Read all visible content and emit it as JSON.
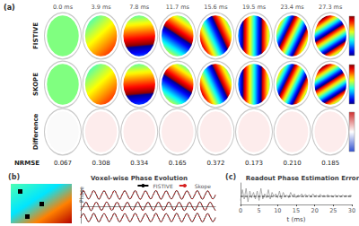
{
  "panel_a": {
    "panel_label": "(a)",
    "times": [
      "0.0 ms",
      "3.9 ms",
      "7.8 ms",
      "11.7 ms",
      "15.6 ms",
      "19.5 ms",
      "23.4 ms",
      "27.3 ms"
    ],
    "rows": [
      "FISTIVE",
      "SKOPE",
      "Difference"
    ],
    "metric": "NRMSE",
    "nrmse": [
      "0.067",
      "0.308",
      "0.334",
      "0.165",
      "0.372",
      "0.173",
      "0.210",
      "0.185"
    ]
  },
  "chart_data": [
    {
      "type": "line",
      "panel_label": "(b)",
      "title": "Voxel-wise Phase Evolution",
      "y_label": "Phase",
      "tick_labels": false,
      "legend": "top-right",
      "ylim": [
        -3,
        3
      ],
      "series": [
        {
          "name": "FISTIVE",
          "color": "#000000",
          "line_style": "solid",
          "values": [
            2.0,
            2.7,
            2.0,
            1.3,
            2.0,
            2.75,
            2.05,
            1.25,
            2.0,
            2.7,
            1.95,
            1.3,
            2.0,
            2.75,
            2.0,
            1.25,
            2.05,
            2.7,
            2.0,
            1.3,
            2.0,
            2.75,
            1.95,
            1.25,
            2.0,
            2.7,
            2.0,
            1.3,
            2.05,
            2.75,
            2.0,
            1.25,
            2.0,
            2.7,
            1.95,
            1.3,
            2.0,
            2.75,
            2.0,
            1.25,
            2.0,
            2.7,
            2.05,
            1.3,
            2.0,
            2.75,
            2.0,
            1.25,
            2.0,
            2.7,
            2.0,
            1.3,
            2.0
          ]
        },
        {
          "name": "Skope",
          "color": "#d62020",
          "line_style": "dashed",
          "values": [
            2.0,
            2.72,
            2.02,
            1.3,
            2.0,
            2.74,
            2.05,
            1.27,
            2.02,
            2.7,
            1.95,
            1.28,
            2.0,
            2.74,
            2.0,
            1.27,
            2.05,
            2.72,
            2.0,
            1.3,
            2.0,
            2.73,
            1.97,
            1.25,
            2.0,
            2.7,
            2.02,
            1.3,
            2.05,
            2.74,
            2.0,
            1.27,
            2.0,
            2.7,
            1.95,
            1.3,
            2.02,
            2.75,
            2.0,
            1.25,
            2.0,
            2.72,
            2.05,
            1.3,
            2.0,
            2.74,
            2.0,
            1.27,
            2.0,
            2.7,
            2.02,
            1.3,
            2.0
          ]
        },
        {
          "name": "FISTIVE",
          "color": "#000000",
          "line_style": "solid",
          "values": [
            -0.7,
            0,
            0.7,
            0,
            -0.75,
            0.05,
            0.7,
            0,
            -0.7,
            0,
            0.75,
            0.05,
            -0.7,
            0,
            0.7,
            0,
            -0.75,
            0,
            0.7,
            -0.05,
            -0.7,
            0,
            0.75,
            0,
            -0.7,
            0.05,
            0.7,
            0,
            -0.75,
            0,
            0.7,
            0,
            -0.7,
            0,
            0.75,
            0.05,
            -0.7,
            0,
            0.7,
            0,
            -0.75,
            0,
            0.7,
            -0.05,
            -0.7,
            0,
            0.75,
            0,
            -0.7,
            0.05,
            0.7,
            0,
            -0.75
          ]
        },
        {
          "name": "Skope",
          "color": "#d62020",
          "line_style": "dashed",
          "values": [
            -0.72,
            0.02,
            0.7,
            0,
            -0.74,
            0.05,
            0.72,
            0.02,
            -0.7,
            0,
            0.74,
            0.05,
            -0.72,
            0,
            0.7,
            0.02,
            -0.74,
            0,
            0.7,
            -0.03,
            -0.7,
            0.02,
            0.74,
            0,
            -0.72,
            0.05,
            0.7,
            0,
            -0.74,
            0.02,
            0.72,
            0,
            -0.7,
            0,
            0.74,
            0.04,
            -0.72,
            0,
            0.7,
            0.02,
            -0.74,
            0,
            0.72,
            -0.04,
            -0.7,
            0,
            0.74,
            0.02,
            -0.72,
            0.05,
            0.7,
            0,
            -0.74
          ]
        },
        {
          "name": "FISTIVE",
          "color": "#000000",
          "line_style": "solid",
          "values": [
            -2.0,
            -1.3,
            -2.0,
            -2.7,
            -2.05,
            -1.25,
            -2.0,
            -2.75,
            -2.0,
            -1.3,
            -1.95,
            -2.7,
            -2.0,
            -1.25,
            -2.0,
            -2.75,
            -2.05,
            -1.3,
            -2.0,
            -2.7,
            -2.0,
            -1.25,
            -1.95,
            -2.75,
            -2.0,
            -1.3,
            -2.0,
            -2.7,
            -2.05,
            -1.25,
            -2.0,
            -2.75,
            -2.0,
            -1.3,
            -1.95,
            -2.7,
            -2.0,
            -1.25,
            -2.0,
            -2.75,
            -2.0,
            -1.3,
            -2.05,
            -2.7,
            -2.0,
            -1.25,
            -2.0,
            -2.75,
            -2.0,
            -1.3,
            -2.0,
            -2.7,
            -2.0
          ]
        },
        {
          "name": "Skope",
          "color": "#d62020",
          "line_style": "dashed",
          "values": [
            -2.0,
            -1.32,
            -2.02,
            -2.7,
            -2.04,
            -1.27,
            -2.0,
            -2.73,
            -2.02,
            -1.3,
            -1.97,
            -2.7,
            -2.0,
            -1.27,
            -2.02,
            -2.74,
            -2.04,
            -1.3,
            -2.0,
            -2.72,
            -2.0,
            -1.27,
            -1.97,
            -2.74,
            -2.02,
            -1.3,
            -2.0,
            -2.7,
            -2.04,
            -1.27,
            -2.0,
            -2.73,
            -2.0,
            -1.32,
            -1.97,
            -2.7,
            -2.02,
            -1.27,
            -2.0,
            -2.74,
            -2.0,
            -1.3,
            -2.04,
            -2.72,
            -2.0,
            -1.27,
            -2.02,
            -2.74,
            -2.0,
            -1.3,
            -2.0,
            -2.7,
            -2.0
          ]
        }
      ]
    },
    {
      "type": "line",
      "panel_label": "(c)",
      "title": "Readout Phase Estimation Error",
      "x_label": "t (ms)",
      "tick_labels": "x",
      "xlim": [
        0,
        30
      ],
      "xticks": [
        0,
        5,
        10,
        15,
        20,
        25,
        30
      ],
      "ylim": [
        0,
        0.8
      ],
      "series": [
        {
          "color": "#9a9a9a",
          "line_style": "solid",
          "x": [
            0,
            0.5,
            1,
            1.5,
            2,
            2.5,
            3,
            3.5,
            4,
            4.5,
            5,
            5.5,
            6,
            6.5,
            7,
            7.5,
            8,
            8.5,
            9,
            9.5,
            10,
            10.5,
            11,
            11.5,
            12,
            12.5,
            13,
            13.5,
            14,
            14.5,
            15,
            15.5,
            16,
            16.5,
            17,
            17.5,
            18,
            18.5,
            19,
            19.5,
            20,
            20.5,
            21,
            21.5,
            22,
            22.5,
            23,
            23.5,
            24,
            24.5,
            25,
            25.5,
            26,
            26.5,
            27,
            27.5,
            28,
            28.5,
            29,
            29.5,
            30
          ],
          "values": [
            0.15,
            0.55,
            0.2,
            0.6,
            0.1,
            0.5,
            0.25,
            0.45,
            0.2,
            0.5,
            0.15,
            0.6,
            0.2,
            0.4,
            0.25,
            0.55,
            0.2,
            0.45,
            0.3,
            0.4,
            0.25,
            0.5,
            0.2,
            0.45,
            0.3,
            0.35,
            0.25,
            0.45,
            0.3,
            0.4,
            0.25,
            0.35,
            0.3,
            0.4,
            0.28,
            0.38,
            0.3,
            0.36,
            0.27,
            0.4,
            0.3,
            0.35,
            0.28,
            0.38,
            0.3,
            0.34,
            0.29,
            0.37,
            0.3,
            0.33,
            0.28,
            0.36,
            0.3,
            0.34,
            0.29,
            0.35,
            0.31,
            0.33,
            0.3,
            0.34,
            0.32
          ]
        },
        {
          "color": "#000000",
          "line_style": "dashed",
          "x": [
            0,
            30
          ],
          "values": [
            0.3,
            0.3
          ]
        }
      ]
    }
  ]
}
